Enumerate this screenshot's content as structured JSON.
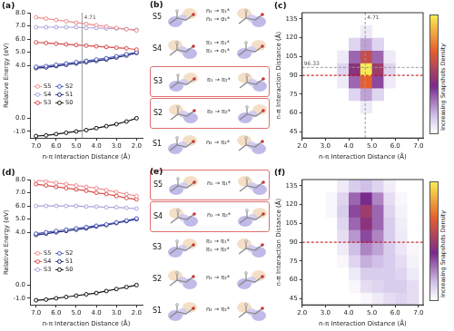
{
  "chart_data": [
    {
      "type": "line",
      "title": "(a)",
      "x_label": "n-π Interaction Distance (Å)",
      "y_label": "Relative Energy (eV)",
      "x": [
        7.0,
        6.5,
        6.0,
        5.5,
        5.0,
        4.5,
        4.0,
        3.5,
        3.0,
        2.5,
        2.0
      ],
      "series": [
        {
          "name": "S5",
          "color": "#f08c8c",
          "marker": "circle",
          "line_style": "solid",
          "values": [
            7.65,
            7.55,
            7.45,
            7.35,
            7.25,
            7.15,
            7.05,
            6.95,
            6.85,
            6.75,
            6.65
          ]
        },
        {
          "name": "S4",
          "color": "#a9a2dc",
          "marker": "circle",
          "line_style": "solid",
          "values": [
            6.9,
            6.9,
            6.9,
            6.9,
            6.9,
            6.85,
            6.85,
            6.8,
            6.8,
            6.75,
            6.7
          ]
        },
        {
          "name": "S3",
          "color": "#d94848",
          "marker": "circle",
          "line_style": "solid",
          "values": [
            5.75,
            5.7,
            5.65,
            5.6,
            5.55,
            5.5,
            5.45,
            5.4,
            5.35,
            5.3,
            5.2
          ]
        },
        {
          "name": "S2",
          "color": "#4a56b8",
          "marker": "circle",
          "line_style": "solid",
          "values": [
            3.9,
            3.95,
            4.05,
            4.15,
            4.25,
            4.35,
            4.45,
            4.55,
            4.7,
            4.85,
            5.0
          ]
        },
        {
          "name": "S1",
          "color": "#1c2470",
          "marker": "circle",
          "line_style": "solid",
          "values": [
            3.8,
            3.85,
            3.95,
            4.05,
            4.15,
            4.25,
            4.35,
            4.45,
            4.6,
            4.75,
            4.95
          ]
        },
        {
          "name": "S0",
          "color": "#111111",
          "marker": "circle",
          "line_style": "solid",
          "values": [
            -1.35,
            -1.3,
            -1.2,
            -1.1,
            -1.0,
            -0.9,
            -0.75,
            -0.6,
            -0.45,
            -0.25,
            0.0
          ]
        }
      ],
      "xlim": [
        7.3,
        1.7
      ],
      "xticks": [
        {
          "value": 7,
          "label": "7.0"
        },
        {
          "value": 6,
          "label": "6.0"
        },
        {
          "value": 5,
          "label": "5.0"
        },
        {
          "value": 4,
          "label": "4.0"
        },
        {
          "value": 3,
          "label": "3.0"
        },
        {
          "value": 2,
          "label": "2.0"
        }
      ],
      "ylim": [
        -1.5,
        8.0
      ],
      "yticks": [
        {
          "value": -1,
          "label": "-1.0"
        },
        {
          "value": 0,
          "label": "0.0"
        },
        {
          "value": 4,
          "label": "4.0"
        },
        {
          "value": 5,
          "label": "5.0"
        },
        {
          "value": 6,
          "label": "6.0"
        },
        {
          "value": 7,
          "label": "7.0"
        },
        {
          "value": 8,
          "label": "8.0"
        }
      ],
      "annotations": [
        {
          "x": 4.71,
          "label": "4.71",
          "color": "#9a9a9a"
        }
      ],
      "legend": "center left",
      "grid": false
    },
    {
      "type": "heatmap",
      "title": "(c)",
      "x_label": "n-π Interaction Distance (Å)",
      "y_label": "n-π Interaction Distance (Å)",
      "x_bins": [
        2.0,
        2.5,
        3.0,
        3.5,
        4.0,
        4.5,
        5.0,
        5.5,
        6.0,
        6.5,
        7.0
      ],
      "y_bins": [
        40,
        50,
        60,
        70,
        80,
        90,
        100,
        110,
        120,
        130,
        140
      ],
      "cells": [
        [
          0,
          0,
          0,
          0,
          0,
          0,
          0,
          0,
          0,
          0
        ],
        [
          0,
          0,
          0,
          0,
          0,
          0,
          0,
          0,
          0,
          0
        ],
        [
          0,
          0,
          0,
          0,
          0,
          0.05,
          0,
          0,
          0,
          0
        ],
        [
          0,
          0,
          0,
          0,
          0.1,
          0.2,
          0.1,
          0,
          0,
          0
        ],
        [
          0,
          0,
          0,
          0.05,
          0.3,
          0.7,
          0.35,
          0.05,
          0,
          0
        ],
        [
          0,
          0,
          0,
          0.1,
          0.45,
          1.0,
          0.5,
          0.1,
          0,
          0
        ],
        [
          0,
          0,
          0,
          0.05,
          0.3,
          0.6,
          0.3,
          0.05,
          0,
          0
        ],
        [
          0,
          0,
          0,
          0,
          0.1,
          0.2,
          0.1,
          0,
          0,
          0
        ],
        [
          0,
          0,
          0,
          0,
          0,
          0.05,
          0,
          0,
          0,
          0
        ],
        [
          0,
          0,
          0,
          0,
          0,
          0,
          0,
          0,
          0,
          0
        ]
      ],
      "colorbar_label": "Increasing Snapshots Density",
      "colorbar_range": [
        0,
        1
      ],
      "xlim": [
        2.0,
        7.2
      ],
      "xticks": [
        {
          "value": 2,
          "label": "2.0"
        },
        {
          "value": 3,
          "label": "3.0"
        },
        {
          "value": 4,
          "label": "4.0"
        },
        {
          "value": 5,
          "label": "5.0"
        },
        {
          "value": 6,
          "label": "6.0"
        },
        {
          "value": 7,
          "label": "7.0"
        }
      ],
      "ylim": [
        40,
        140
      ],
      "yticks": [
        45,
        60,
        75,
        90,
        105,
        120,
        135
      ],
      "annotations": [
        {
          "x": 4.71,
          "label": "4.71",
          "color": "#9a9a9a"
        },
        {
          "y": 96.33,
          "label": "96.33",
          "color": "#9a9a9a"
        },
        {
          "y": 90,
          "color": "#c00000"
        }
      ],
      "grid": false
    },
    {
      "type": "line",
      "title": "(d)",
      "x_label": "n-π Interaction Distance (Å)",
      "y_label": "Relative Energy (eV)",
      "x": [
        7.0,
        6.5,
        6.0,
        5.5,
        5.0,
        4.5,
        4.0,
        3.5,
        3.0,
        2.5,
        2.0
      ],
      "series": [
        {
          "name": "S5",
          "color": "#f08c8c",
          "marker": "circle",
          "line_style": "solid",
          "values": [
            7.95,
            7.85,
            7.75,
            7.65,
            7.55,
            7.45,
            7.35,
            7.2,
            7.05,
            6.9,
            6.75
          ]
        },
        {
          "name": "S4",
          "color": "#d94848",
          "marker": "circle",
          "line_style": "solid",
          "values": [
            7.65,
            7.55,
            7.45,
            7.35,
            7.25,
            7.15,
            7.0,
            6.9,
            6.75,
            6.6,
            6.5
          ]
        },
        {
          "name": "S3",
          "color": "#a9a2dc",
          "marker": "circle",
          "line_style": "solid",
          "values": [
            6.0,
            6.0,
            6.0,
            6.0,
            6.0,
            5.95,
            5.95,
            5.9,
            5.9,
            5.85,
            5.8
          ]
        },
        {
          "name": "S2",
          "color": "#4a56b8",
          "marker": "circle",
          "line_style": "solid",
          "values": [
            3.9,
            4.0,
            4.1,
            4.2,
            4.3,
            4.4,
            4.5,
            4.6,
            4.75,
            4.9,
            5.05
          ]
        },
        {
          "name": "S1",
          "color": "#1c2470",
          "marker": "circle",
          "line_style": "solid",
          "values": [
            3.8,
            3.9,
            4.0,
            4.1,
            4.2,
            4.3,
            4.45,
            4.55,
            4.7,
            4.85,
            5.0
          ]
        },
        {
          "name": "S0",
          "color": "#111111",
          "marker": "circle",
          "line_style": "solid",
          "values": [
            -1.15,
            -1.1,
            -1.0,
            -0.9,
            -0.8,
            -0.7,
            -0.6,
            -0.45,
            -0.3,
            -0.15,
            0.0
          ]
        }
      ],
      "xlim": [
        7.3,
        1.7
      ],
      "xticks": [
        {
          "value": 7,
          "label": "7.0"
        },
        {
          "value": 6,
          "label": "6.0"
        },
        {
          "value": 5,
          "label": "5.0"
        },
        {
          "value": 4,
          "label": "4.0"
        },
        {
          "value": 3,
          "label": "3.0"
        },
        {
          "value": 2,
          "label": "2.0"
        }
      ],
      "ylim": [
        -1.5,
        8.0
      ],
      "yticks": [
        {
          "value": -1,
          "label": "-1.0"
        },
        {
          "value": 0,
          "label": "0.0"
        },
        {
          "value": 4,
          "label": "4.0"
        },
        {
          "value": 5,
          "label": "5.0"
        },
        {
          "value": 6,
          "label": "6.0"
        },
        {
          "value": 7,
          "label": "7.0"
        },
        {
          "value": 8,
          "label": "8.0"
        }
      ],
      "legend": "center left",
      "grid": false
    },
    {
      "type": "heatmap",
      "title": "(f)",
      "x_label": "n-π Interaction Distance (Å)",
      "y_label": "n-π Interaction Distance (Å)",
      "x_bins": [
        2.0,
        2.5,
        3.0,
        3.5,
        4.0,
        4.5,
        5.0,
        5.5,
        6.0,
        6.5,
        7.0
      ],
      "y_bins": [
        40,
        50,
        60,
        70,
        80,
        90,
        100,
        110,
        120,
        130,
        140
      ],
      "cells": [
        [
          0,
          0,
          0,
          0,
          0,
          0.02,
          0.05,
          0.08,
          0.1,
          0.08
        ],
        [
          0,
          0,
          0,
          0,
          0.02,
          0.08,
          0.1,
          0.12,
          0.12,
          0.08
        ],
        [
          0,
          0,
          0,
          0,
          0.05,
          0.12,
          0.12,
          0.12,
          0.1,
          0.05
        ],
        [
          0,
          0,
          0,
          0.02,
          0.1,
          0.18,
          0.15,
          0.12,
          0.08,
          0.03
        ],
        [
          0,
          0,
          0,
          0.05,
          0.15,
          0.25,
          0.2,
          0.12,
          0.06,
          0.02
        ],
        [
          0,
          0,
          0,
          0.08,
          0.22,
          0.35,
          0.25,
          0.12,
          0.05,
          0
        ],
        [
          0,
          0,
          0,
          0.1,
          0.3,
          0.45,
          0.3,
          0.12,
          0.04,
          0
        ],
        [
          0,
          0,
          0.02,
          0.12,
          0.35,
          0.5,
          0.3,
          0.1,
          0.03,
          0
        ],
        [
          0,
          0,
          0.02,
          0.1,
          0.3,
          0.4,
          0.25,
          0.08,
          0.02,
          0
        ],
        [
          0,
          0,
          0,
          0.05,
          0.12,
          0.15,
          0.1,
          0.04,
          0,
          0
        ]
      ],
      "colorbar_label": "Increasing Snapshots Density",
      "colorbar_range": [
        0,
        1
      ],
      "xlim": [
        2.0,
        7.2
      ],
      "xticks": [
        {
          "value": 2,
          "label": "2.0"
        },
        {
          "value": 3,
          "label": "3.0"
        },
        {
          "value": 4,
          "label": "4.0"
        },
        {
          "value": 5,
          "label": "5.0"
        },
        {
          "value": 6,
          "label": "6.0"
        },
        {
          "value": 7,
          "label": "7.0"
        }
      ],
      "ylim": [
        40,
        140
      ],
      "yticks": [
        45,
        60,
        75,
        90,
        105,
        120,
        135
      ],
      "annotations": [
        {
          "y": 90,
          "color": "#c00000"
        }
      ],
      "grid": false
    }
  ],
  "orbital_panels": [
    {
      "title": "(b)",
      "rows": [
        {
          "state": "S5",
          "transitions": [
            "n₁ → π₁*",
            "n₁ → σ₁*"
          ],
          "boxed": false
        },
        {
          "state": "S4",
          "transitions": [
            "π₁ → π₁*",
            "π₁ → σ₁*"
          ],
          "boxed": false
        },
        {
          "state": "S3",
          "transitions": [
            "π₁ → π₂*"
          ],
          "boxed": true
        },
        {
          "state": "S2",
          "transitions": [
            "π₂ → π₂*"
          ],
          "boxed": true
        },
        {
          "state": "S1",
          "transitions": [
            "n₂ → π₂*"
          ],
          "boxed": false
        }
      ]
    },
    {
      "title": "(e)",
      "rows": [
        {
          "state": "S5",
          "transitions": [
            "n₁ → π₁*"
          ],
          "boxed": true
        },
        {
          "state": "S4",
          "transitions": [
            "n₁ → π₂*"
          ],
          "boxed": true
        },
        {
          "state": "S3",
          "transitions": [
            "π₁ → π₁*",
            "π₁ → π₂*"
          ],
          "boxed": false
        },
        {
          "state": "S2",
          "transitions": [
            "n₁ → π₂*"
          ],
          "boxed": false
        },
        {
          "state": "S1",
          "transitions": [
            "n₂ → π₂*"
          ],
          "boxed": false
        }
      ]
    }
  ]
}
